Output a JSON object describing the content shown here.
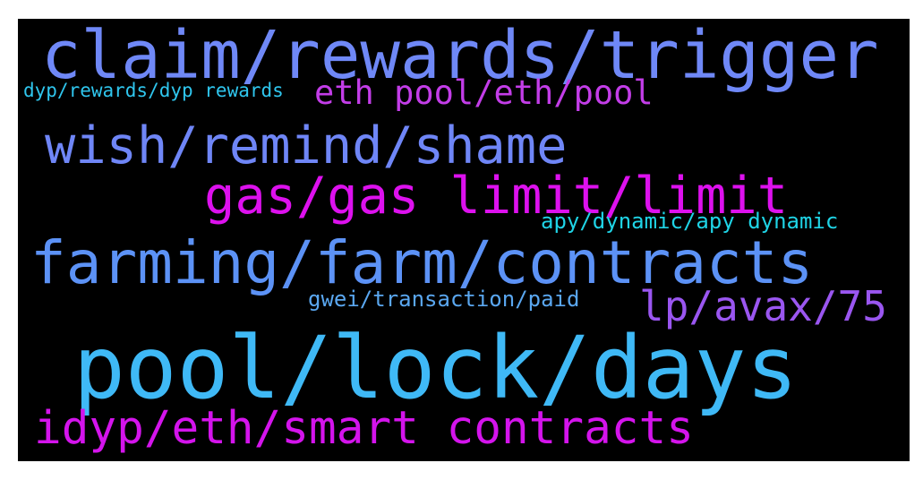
{
  "words": [
    {
      "text": "claim/rewards/trigger",
      "color": "#6f88f7"
    },
    {
      "text": "dyp/rewards/dyp rewards",
      "color": "#2fc6ee"
    },
    {
      "text": "eth pool/eth/pool",
      "color": "#c33de8"
    },
    {
      "text": "wish/remind/shame",
      "color": "#6f86f7"
    },
    {
      "text": "gas/gas limit/limit",
      "color": "#dd11ee"
    },
    {
      "text": "apy/dynamic/apy dynamic",
      "color": "#1fd4e6"
    },
    {
      "text": "farming/farm/contracts",
      "color": "#5c92f6"
    },
    {
      "text": "gwei/transaction/paid",
      "color": "#5aa7f0"
    },
    {
      "text": "lp/avax/75",
      "color": "#9a56f0"
    },
    {
      "text": "pool/lock/days",
      "color": "#3fb9f6"
    },
    {
      "text": "idyp/eth/smart contracts",
      "color": "#d414ec"
    }
  ]
}
